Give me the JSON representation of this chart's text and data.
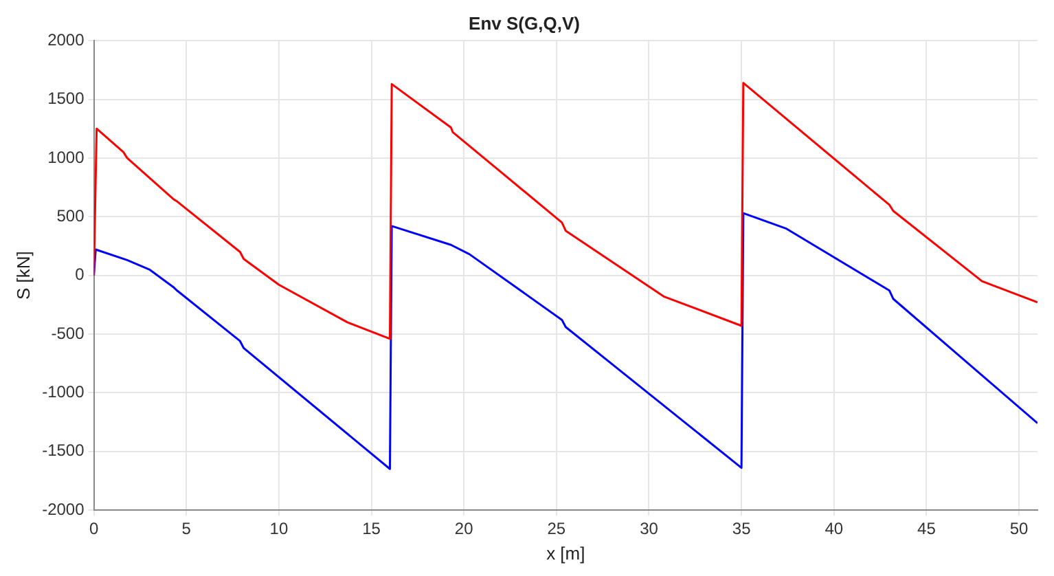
{
  "chart_data": {
    "type": "line",
    "title": "Env S(G,Q,V)",
    "xlabel": "x [m]",
    "ylabel": "S [kN]",
    "xlim": [
      0,
      51
    ],
    "xticks": [
      0,
      5,
      10,
      15,
      20,
      25,
      30,
      35,
      40,
      45,
      50
    ],
    "ylim": [
      -2000,
      2000
    ],
    "yticks": [
      -2000,
      -1500,
      -1000,
      -500,
      0,
      500,
      1000,
      1500,
      2000
    ],
    "grid": true,
    "legend": false,
    "marker": "none",
    "line_style": "solid",
    "series": [
      {
        "color": "#ff0000",
        "x": [
          0,
          0.15,
          1.6,
          1.8,
          4.3,
          4.5,
          7.9,
          8.1,
          10,
          13.7,
          16,
          16.1,
          19.3,
          19.4,
          25.3,
          25.5,
          30.8,
          35,
          35.1,
          43,
          43.2,
          48,
          51
        ],
        "values": [
          0,
          1250,
          1050,
          1000,
          650,
          630,
          200,
          140,
          -80,
          -400,
          -540,
          1630,
          1260,
          1220,
          450,
          380,
          -180,
          -430,
          1640,
          600,
          550,
          -50,
          -230
        ]
      },
      {
        "color": "#0000ff",
        "x": [
          0,
          0.1,
          1.8,
          3,
          4.3,
          4.5,
          7.9,
          8.1,
          16,
          16.1,
          19.3,
          20.3,
          25.3,
          25.5,
          35,
          35.1,
          37.4,
          43,
          43.2,
          51
        ],
        "values": [
          0,
          220,
          130,
          50,
          -100,
          -130,
          -560,
          -620,
          -1650,
          420,
          260,
          180,
          -380,
          -440,
          -1640,
          530,
          400,
          -130,
          -200,
          -1260
        ]
      }
    ]
  }
}
